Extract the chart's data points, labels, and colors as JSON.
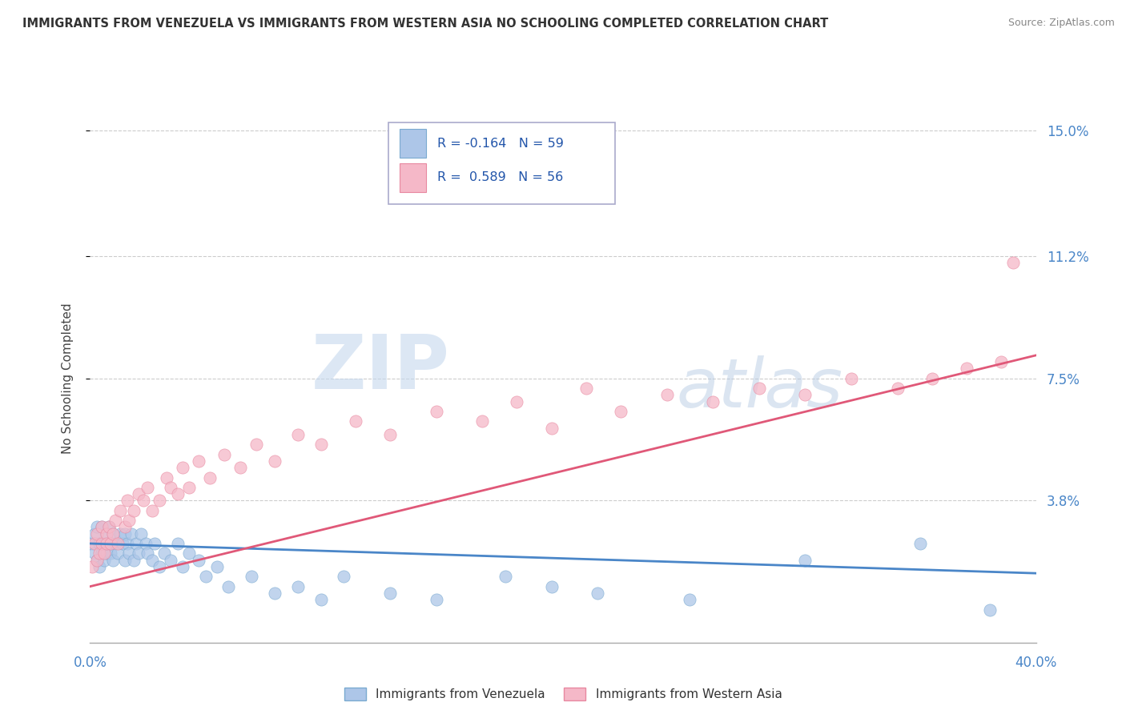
{
  "title": "IMMIGRANTS FROM VENEZUELA VS IMMIGRANTS FROM WESTERN ASIA NO SCHOOLING COMPLETED CORRELATION CHART",
  "source": "Source: ZipAtlas.com",
  "ylabel": "No Schooling Completed",
  "xlim": [
    0.0,
    0.41
  ],
  "ylim": [
    -0.005,
    0.155
  ],
  "ytick_labels": [
    "15.0%",
    "11.2%",
    "7.5%",
    "3.8%"
  ],
  "ytick_values": [
    0.15,
    0.112,
    0.075,
    0.038
  ],
  "series1_name": "Immigrants from Venezuela",
  "series1_color": "#adc6e8",
  "series1_edge": "#7aaad0",
  "series1_R": -0.164,
  "series1_N": 59,
  "series2_name": "Immigrants from Western Asia",
  "series2_color": "#f5b8c8",
  "series2_edge": "#e888a0",
  "series2_R": 0.589,
  "series2_N": 56,
  "trend1_color": "#4a86c8",
  "trend2_color": "#e05878",
  "trend1_y0": 0.025,
  "trend1_y1": 0.016,
  "trend2_y0": 0.012,
  "trend2_y1": 0.082,
  "watermark_ZIP": "ZIP",
  "watermark_atlas": "atlas",
  "watermark_color_ZIP": "#c8d8ec",
  "watermark_color_atlas": "#b8c8dc",
  "background_color": "#ffffff",
  "grid_color": "#cccccc",
  "axis_label_color": "#4a86c8",
  "title_color": "#333333",
  "scatter1_x": [
    0.001,
    0.002,
    0.002,
    0.003,
    0.003,
    0.004,
    0.004,
    0.005,
    0.005,
    0.006,
    0.006,
    0.007,
    0.007,
    0.008,
    0.008,
    0.009,
    0.01,
    0.01,
    0.011,
    0.012,
    0.013,
    0.014,
    0.015,
    0.015,
    0.016,
    0.017,
    0.018,
    0.019,
    0.02,
    0.021,
    0.022,
    0.024,
    0.025,
    0.027,
    0.028,
    0.03,
    0.032,
    0.035,
    0.038,
    0.04,
    0.043,
    0.047,
    0.05,
    0.055,
    0.06,
    0.07,
    0.08,
    0.09,
    0.1,
    0.11,
    0.13,
    0.15,
    0.18,
    0.2,
    0.22,
    0.26,
    0.31,
    0.36,
    0.39
  ],
  "scatter1_y": [
    0.025,
    0.022,
    0.028,
    0.02,
    0.03,
    0.025,
    0.018,
    0.022,
    0.03,
    0.025,
    0.02,
    0.028,
    0.022,
    0.025,
    0.03,
    0.022,
    0.028,
    0.02,
    0.025,
    0.022,
    0.028,
    0.025,
    0.02,
    0.028,
    0.025,
    0.022,
    0.028,
    0.02,
    0.025,
    0.022,
    0.028,
    0.025,
    0.022,
    0.02,
    0.025,
    0.018,
    0.022,
    0.02,
    0.025,
    0.018,
    0.022,
    0.02,
    0.015,
    0.018,
    0.012,
    0.015,
    0.01,
    0.012,
    0.008,
    0.015,
    0.01,
    0.008,
    0.015,
    0.012,
    0.01,
    0.008,
    0.02,
    0.025,
    0.005
  ],
  "scatter2_x": [
    0.001,
    0.002,
    0.003,
    0.003,
    0.004,
    0.005,
    0.005,
    0.006,
    0.007,
    0.007,
    0.008,
    0.009,
    0.01,
    0.011,
    0.012,
    0.013,
    0.015,
    0.016,
    0.017,
    0.019,
    0.021,
    0.023,
    0.025,
    0.027,
    0.03,
    0.033,
    0.035,
    0.038,
    0.04,
    0.043,
    0.047,
    0.052,
    0.058,
    0.065,
    0.072,
    0.08,
    0.09,
    0.1,
    0.115,
    0.13,
    0.15,
    0.17,
    0.185,
    0.2,
    0.215,
    0.23,
    0.25,
    0.27,
    0.29,
    0.31,
    0.33,
    0.35,
    0.365,
    0.38,
    0.395,
    0.4
  ],
  "scatter2_y": [
    0.018,
    0.025,
    0.02,
    0.028,
    0.022,
    0.025,
    0.03,
    0.022,
    0.028,
    0.025,
    0.03,
    0.025,
    0.028,
    0.032,
    0.025,
    0.035,
    0.03,
    0.038,
    0.032,
    0.035,
    0.04,
    0.038,
    0.042,
    0.035,
    0.038,
    0.045,
    0.042,
    0.04,
    0.048,
    0.042,
    0.05,
    0.045,
    0.052,
    0.048,
    0.055,
    0.05,
    0.058,
    0.055,
    0.062,
    0.058,
    0.065,
    0.062,
    0.068,
    0.06,
    0.072,
    0.065,
    0.07,
    0.068,
    0.072,
    0.07,
    0.075,
    0.072,
    0.075,
    0.078,
    0.08,
    0.11
  ]
}
